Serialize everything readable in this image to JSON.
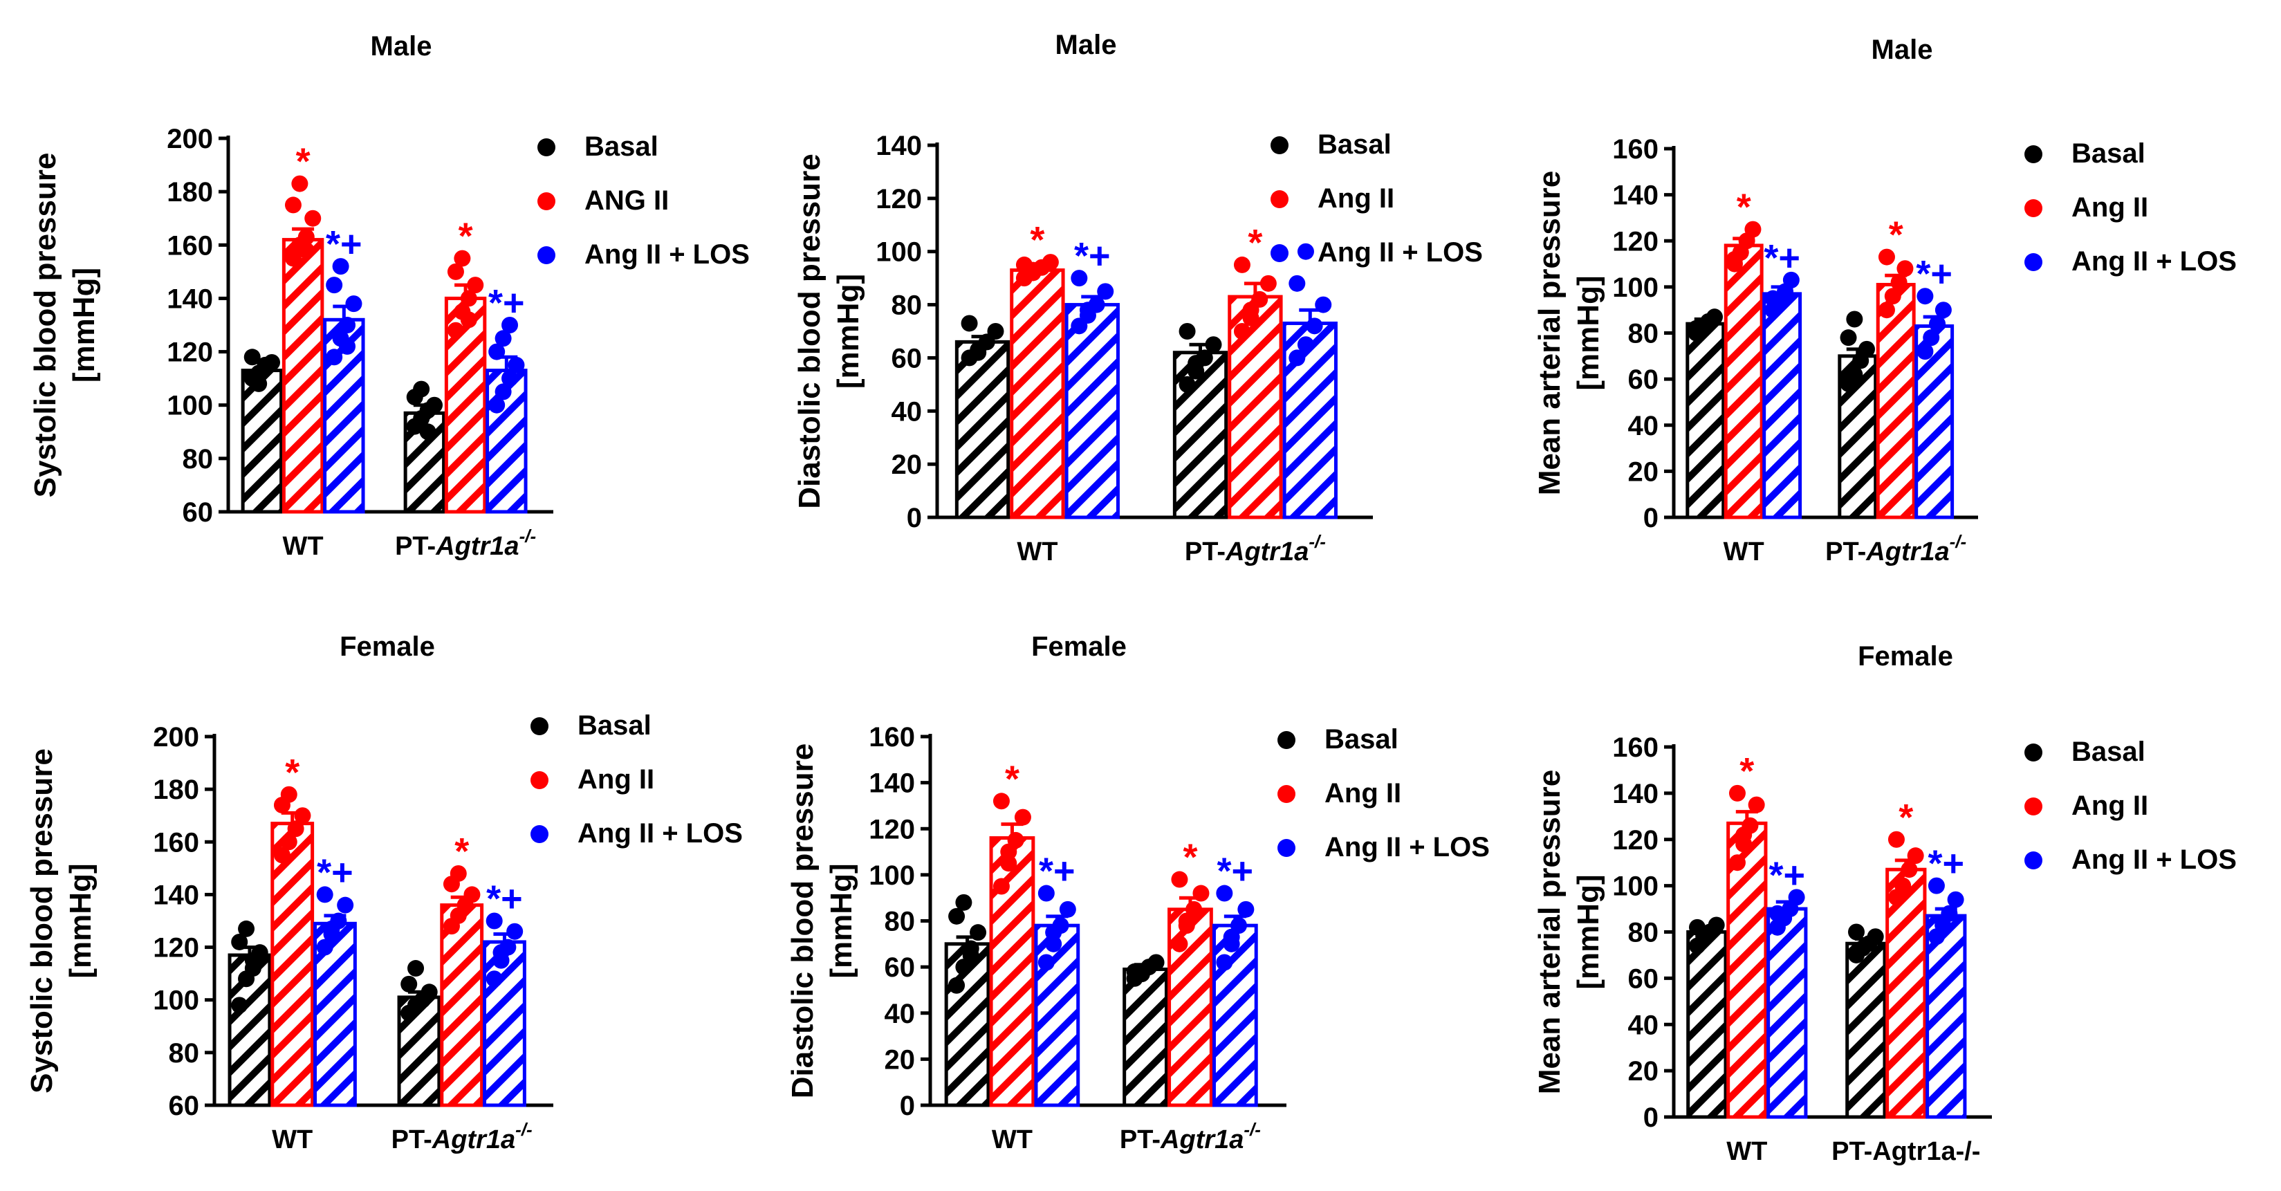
{
  "colors": {
    "basal": "#000000",
    "angii": "#ff0000",
    "los": "#0000ff"
  },
  "chart_data": [
    {
      "type": "bar",
      "title": "Male",
      "ylabel": "Systolic blood pressure",
      "yunit": "[mmHg]",
      "ylim": [
        60,
        200
      ],
      "yticks": [
        "60",
        "80",
        "100",
        "120",
        "140",
        "160",
        "180",
        "200"
      ],
      "groups": [
        {
          "plain": "WT",
          "italic": "",
          "sup": ""
        },
        {
          "plain": "PT-",
          "italic": "Agtr1a",
          "sup": "-/-"
        }
      ],
      "legend": [
        "Basal",
        "ANG II",
        "Ang II + LOS"
      ],
      "series": [
        {
          "name": "Basal",
          "values": [
            113,
            97
          ],
          "err": [
            3,
            3
          ],
          "points": [
            [
              110,
              112,
              114,
              116,
              118,
              108,
              115
            ],
            [
              92,
              95,
              98,
              100,
              103,
              106,
              90
            ]
          ],
          "ann": [
            "",
            ""
          ]
        },
        {
          "name": "ANG II",
          "values": [
            162,
            140
          ],
          "err": [
            4,
            5
          ],
          "points": [
            [
              155,
              160,
              163,
              170,
              175,
              183,
              158
            ],
            [
              128,
              135,
              140,
              145,
              150,
              155,
              132
            ]
          ],
          "ann": [
            "*",
            "*"
          ]
        },
        {
          "name": "Ang II + LOS",
          "values": [
            132,
            113
          ],
          "err": [
            5,
            5
          ],
          "points": [
            [
              118,
              125,
              130,
              138,
              145,
              152,
              122
            ],
            [
              100,
              105,
              110,
              115,
              120,
              125,
              130
            ]
          ],
          "ann": [
            "*+",
            "*+"
          ]
        }
      ]
    },
    {
      "type": "bar",
      "title": "Male",
      "ylabel": "Diastolic blood pressure",
      "yunit": "[mmHg]",
      "ylim": [
        0,
        140
      ],
      "yticks": [
        "0",
        "20",
        "40",
        "60",
        "80",
        "100",
        "120",
        "140"
      ],
      "groups": [
        {
          "plain": "WT",
          "italic": "",
          "sup": ""
        },
        {
          "plain": "PT-",
          "italic": "Agtr1a",
          "sup": "-/-"
        }
      ],
      "legend": [
        "Basal",
        "Ang II",
        "Ang II + LOS"
      ],
      "series": [
        {
          "name": "Basal",
          "values": [
            66,
            62
          ],
          "err": [
            2,
            3
          ],
          "points": [
            [
              60,
              63,
              66,
              70,
              73,
              62
            ],
            [
              50,
              55,
              60,
              65,
              70,
              58
            ]
          ],
          "ann": [
            "",
            ""
          ]
        },
        {
          "name": "Ang II",
          "values": [
            93,
            83
          ],
          "err": [
            2,
            5
          ],
          "points": [
            [
              90,
              92,
              94,
              96,
              95,
              93
            ],
            [
              70,
              75,
              82,
              88,
              95,
              78
            ]
          ],
          "ann": [
            "*",
            "*"
          ]
        },
        {
          "name": "Ang II + LOS",
          "values": [
            80,
            73
          ],
          "err": [
            3,
            5
          ],
          "points": [
            [
              72,
              76,
              80,
              85,
              90,
              78
            ],
            [
              60,
              65,
              72,
              80,
              88,
              100
            ]
          ],
          "ann": [
            "*+",
            ""
          ]
        }
      ]
    },
    {
      "type": "bar",
      "title": "Male",
      "ylabel": "Mean arterial pressure",
      "yunit": "[mmHg]",
      "ylim": [
        0,
        160
      ],
      "yticks": [
        "0",
        "20",
        "40",
        "60",
        "80",
        "100",
        "120",
        "140",
        "160"
      ],
      "groups": [
        {
          "plain": "WT",
          "italic": "",
          "sup": ""
        },
        {
          "plain": "PT-",
          "italic": "Agtr1a",
          "sup": "-/-"
        }
      ],
      "legend": [
        "Basal",
        "Ang II",
        "Ang II + LOS"
      ],
      "series": [
        {
          "name": "Basal",
          "values": [
            84,
            70
          ],
          "err": [
            2,
            3
          ],
          "points": [
            [
              80,
              83,
              85,
              87,
              82
            ],
            [
              58,
              62,
              68,
              73,
              78,
              86
            ]
          ],
          "ann": [
            "",
            ""
          ]
        },
        {
          "name": "Ang II",
          "values": [
            118,
            101
          ],
          "err": [
            3,
            4
          ],
          "points": [
            [
              110,
              115,
              120,
              125,
              112
            ],
            [
              90,
              96,
              102,
              108,
              113
            ]
          ],
          "ann": [
            "*",
            "*"
          ]
        },
        {
          "name": "Ang II + LOS",
          "values": [
            97,
            83
          ],
          "err": [
            3,
            4
          ],
          "points": [
            [
              90,
              94,
              98,
              103,
              95
            ],
            [
              72,
              78,
              84,
              90,
              96
            ]
          ],
          "ann": [
            "*+",
            "*+"
          ]
        }
      ]
    },
    {
      "type": "bar",
      "title": "Female",
      "ylabel": "Systolic blood pressure",
      "yunit": "[mmHg]",
      "ylim": [
        60,
        200
      ],
      "yticks": [
        "60",
        "80",
        "100",
        "120",
        "140",
        "160",
        "180",
        "200"
      ],
      "groups": [
        {
          "plain": "WT",
          "italic": "",
          "sup": ""
        },
        {
          "plain": "PT-",
          "italic": "Agtr1a",
          "sup": "-/-"
        }
      ],
      "legend": [
        "Basal",
        "Ang II",
        "Ang II + LOS"
      ],
      "series": [
        {
          "name": "Basal",
          "values": [
            117,
            101
          ],
          "err": [
            3,
            2
          ],
          "points": [
            [
              98,
              108,
              115,
              118,
              122,
              127,
              112
            ],
            [
              95,
              98,
              100,
              103,
              106,
              112
            ]
          ],
          "ann": [
            "",
            ""
          ]
        },
        {
          "name": "Ang II",
          "values": [
            167,
            136
          ],
          "err": [
            4,
            3
          ],
          "points": [
            [
              155,
              160,
              165,
              170,
              174,
              178
            ],
            [
              128,
              132,
              136,
              140,
              144,
              148
            ]
          ],
          "ann": [
            "*",
            "*"
          ]
        },
        {
          "name": "Ang II + LOS",
          "values": [
            129,
            122
          ],
          "err": [
            3,
            3
          ],
          "points": [
            [
              120,
              125,
              130,
              136,
              140,
              127
            ],
            [
              108,
              115,
              120,
              126,
              130,
              118
            ]
          ],
          "ann": [
            "*+",
            "*+"
          ]
        }
      ]
    },
    {
      "type": "bar",
      "title": "Female",
      "ylabel": "Diastolic blood pressure",
      "yunit": "[mmHg]",
      "ylim": [
        0,
        160
      ],
      "yticks": [
        "0",
        "20",
        "40",
        "60",
        "80",
        "100",
        "120",
        "140",
        "160"
      ],
      "groups": [
        {
          "plain": "WT",
          "italic": "",
          "sup": ""
        },
        {
          "plain": "PT-",
          "italic": "Agtr1a",
          "sup": "-/-"
        }
      ],
      "legend": [
        "Basal",
        "Ang II",
        "Ang II + LOS"
      ],
      "series": [
        {
          "name": "Basal",
          "values": [
            70,
            59
          ],
          "err": [
            3,
            2
          ],
          "points": [
            [
              52,
              60,
              68,
              75,
              82,
              88,
              65
            ],
            [
              55,
              57,
              60,
              62,
              58
            ]
          ],
          "ann": [
            "",
            ""
          ]
        },
        {
          "name": "Ang II",
          "values": [
            116,
            85
          ],
          "err": [
            6,
            5
          ],
          "points": [
            [
              95,
              105,
              115,
              125,
              132,
              110
            ],
            [
              70,
              78,
              85,
              92,
              98,
              80
            ]
          ],
          "ann": [
            "*",
            "*"
          ]
        },
        {
          "name": "Ang II + LOS",
          "values": [
            78,
            78
          ],
          "err": [
            4,
            4
          ],
          "points": [
            [
              62,
              70,
              78,
              85,
              92,
              75
            ],
            [
              62,
              70,
              78,
              85,
              92,
              73
            ]
          ],
          "ann": [
            "*+",
            "*+"
          ]
        }
      ]
    },
    {
      "type": "bar",
      "title": "Female",
      "ylabel": "Mean arterial pressure",
      "yunit": "[mmHg]",
      "ylim": [
        0,
        160
      ],
      "yticks": [
        "0",
        "20",
        "40",
        "60",
        "80",
        "100",
        "120",
        "140",
        "160"
      ],
      "groups": [
        {
          "plain": "WT",
          "italic": "",
          "sup": ""
        },
        {
          "plain": "PT-Agtr1a-/-",
          "italic": "",
          "sup": ""
        }
      ],
      "legend": [
        "Basal",
        "Ang II",
        "Ang II + LOS"
      ],
      "series": [
        {
          "name": "Basal",
          "values": [
            80,
            75
          ],
          "err": [
            2,
            2
          ],
          "points": [
            [
              74,
              78,
              80,
              83,
              82
            ],
            [
              70,
              73,
              75,
              78,
              80
            ]
          ],
          "ann": [
            "",
            ""
          ]
        },
        {
          "name": "Ang II",
          "values": [
            127,
            107
          ],
          "err": [
            5,
            4
          ],
          "points": [
            [
              110,
              118,
              126,
              135,
              140,
              122
            ],
            [
              95,
              100,
              107,
              113,
              120
            ]
          ],
          "ann": [
            "*",
            "*"
          ]
        },
        {
          "name": "Ang II + LOS",
          "values": [
            90,
            87
          ],
          "err": [
            3,
            3
          ],
          "points": [
            [
              82,
              86,
              90,
              95,
              88
            ],
            [
              78,
              83,
              88,
              94,
              100
            ]
          ],
          "ann": [
            "*+",
            "*+"
          ]
        }
      ]
    }
  ]
}
